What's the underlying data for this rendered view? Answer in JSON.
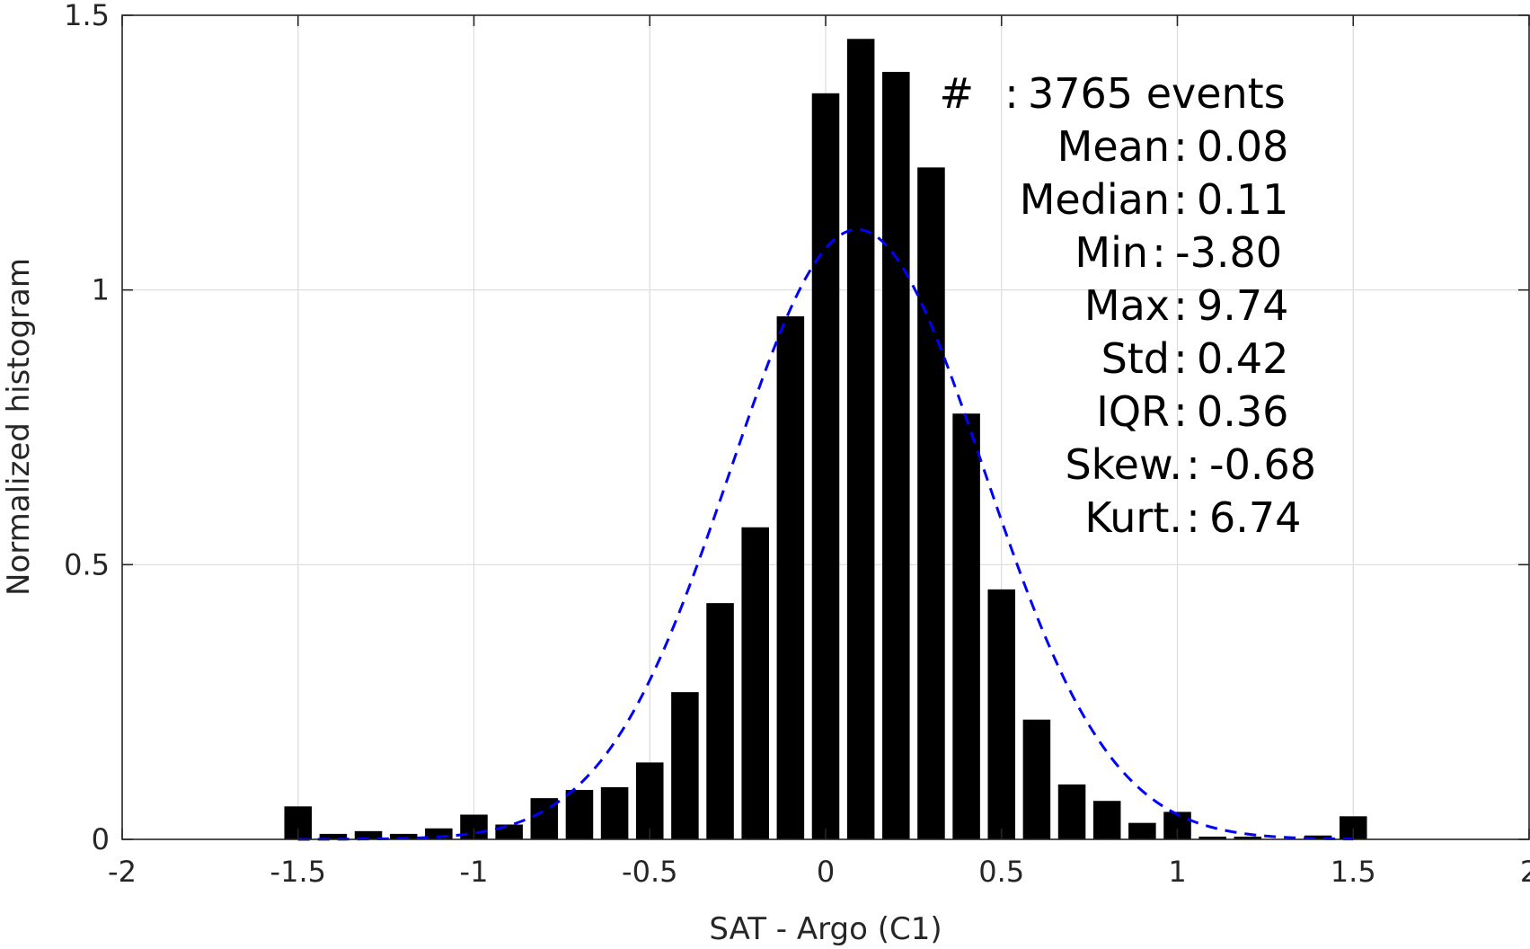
{
  "chart_data": {
    "type": "bar",
    "title": "",
    "xlabel": "SAT - Argo (C1)",
    "ylabel": "Normalized histogram",
    "xlim": [
      -2,
      2
    ],
    "ylim": [
      0,
      1.5
    ],
    "grid": true,
    "xticks": [
      -2,
      -1.5,
      -1,
      -0.5,
      0,
      0.5,
      1,
      1.5,
      2
    ],
    "xtick_labels": [
      "-2",
      "-1.5",
      "-1",
      "-0.5",
      "0",
      "0.5",
      "1",
      "1.5",
      "2"
    ],
    "yticks": [
      0,
      0.5,
      1,
      1.5
    ],
    "ytick_labels": [
      "0",
      "0.5",
      "1",
      "1.5"
    ],
    "bin_width": 0.1,
    "bars": {
      "x": [
        -1.5,
        -1.4,
        -1.3,
        -1.2,
        -1.1,
        -1.0,
        -0.9,
        -0.8,
        -0.7,
        -0.6,
        -0.5,
        -0.4,
        -0.3,
        -0.2,
        -0.1,
        0.0,
        0.1,
        0.2,
        0.3,
        0.4,
        0.5,
        0.6,
        0.7,
        0.8,
        0.9,
        1.0,
        1.1,
        1.2,
        1.3,
        1.4,
        1.5
      ],
      "values": [
        0.06,
        0.01,
        0.015,
        0.01,
        0.02,
        0.045,
        0.027,
        0.075,
        0.09,
        0.095,
        0.14,
        0.268,
        0.43,
        0.568,
        0.952,
        1.358,
        1.457,
        1.397,
        1.223,
        0.775,
        0.455,
        0.218,
        0.1,
        0.07,
        0.03,
        0.05,
        0.005,
        0.005,
        0.0,
        0.007,
        0.042
      ],
      "color": "#000000"
    },
    "fit_curve": {
      "type": "gaussian",
      "mean": 0.09,
      "std": 0.36,
      "peak": 1.11,
      "x_range": [
        -1.5,
        1.5
      ],
      "color": "#0000ff",
      "style": "dashed"
    },
    "annotations": [
      {
        "label": "#",
        "sep": ":",
        "value": "3765 events"
      },
      {
        "label": "Mean",
        "sep": ":",
        "value": "0.08"
      },
      {
        "label": "Median",
        "sep": ":",
        "value": "0.11"
      },
      {
        "label": "Min",
        "sep": ":",
        "value": "-3.80"
      },
      {
        "label": "Max",
        "sep": ":",
        "value": "9.74"
      },
      {
        "label": "Std",
        "sep": ":",
        "value": "0.42"
      },
      {
        "label": "IQR",
        "sep": ":",
        "value": "0.36"
      },
      {
        "label": "Skew.",
        "sep": ":",
        "value": "-0.68"
      },
      {
        "label": "Kurt.",
        "sep": ":",
        "value": "6.74"
      }
    ]
  }
}
